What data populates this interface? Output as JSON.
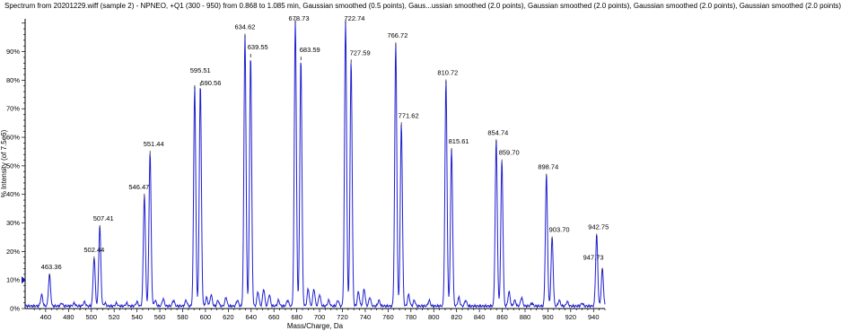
{
  "chart_data": {
    "type": "line",
    "title": "Spectrum from 20201229.wiff (sample 2) - NPNEO, +Q1 (300 - 950) from 0.868 to 1.085 min, Gaussian smoothed (0.5 points), Gaus...ussian smoothed (2.0 points), Gaussian smoothed (2.0 points), Gaussian smoothed (2.0 points), Gaussian smoothed (2.0 points)",
    "xlabel": "Mass/Charge, Da",
    "ylabel": "% Intensity (of 7.5e6)",
    "xlim": [
      442,
      950
    ],
    "ylim": [
      0,
      100
    ],
    "x_ticks": [
      460,
      480,
      500,
      520,
      540,
      560,
      580,
      600,
      620,
      640,
      660,
      680,
      700,
      720,
      740,
      760,
      780,
      800,
      820,
      840,
      860,
      880,
      900,
      920,
      940
    ],
    "y_ticks": [
      0,
      10,
      20,
      30,
      40,
      50,
      60,
      70,
      80,
      90
    ],
    "y_tick_suffix": "%",
    "grid": false,
    "line_color": "#2020d0",
    "peaks": [
      {
        "label": "463.36",
        "x": 463.36,
        "y": 11
      },
      {
        "label": "502.44",
        "x": 502.44,
        "y": 17
      },
      {
        "label": "507.41",
        "x": 507.41,
        "y": 28
      },
      {
        "label": "546.47",
        "x": 546.47,
        "y": 39
      },
      {
        "label": "551.44",
        "x": 551.44,
        "y": 54
      },
      {
        "label": "595.51",
        "x": 595.51,
        "y": 78
      },
      {
        "label": "590.56",
        "x": 590.56,
        "y": 77
      },
      {
        "label": "634.62",
        "x": 634.62,
        "y": 95
      },
      {
        "label": "639.55",
        "x": 639.55,
        "y": 88
      },
      {
        "label": "678.73",
        "x": 678.73,
        "y": 100
      },
      {
        "label": "683.59",
        "x": 683.59,
        "y": 87
      },
      {
        "label": "722.74",
        "x": 722.74,
        "y": 100
      },
      {
        "label": "727.59",
        "x": 727.59,
        "y": 86
      },
      {
        "label": "766.72",
        "x": 766.72,
        "y": 92
      },
      {
        "label": "771.62",
        "x": 771.62,
        "y": 64
      },
      {
        "label": "810.72",
        "x": 810.72,
        "y": 79
      },
      {
        "label": "815.61",
        "x": 815.61,
        "y": 55
      },
      {
        "label": "854.74",
        "x": 854.74,
        "y": 58
      },
      {
        "label": "859.70",
        "x": 859.7,
        "y": 51
      },
      {
        "label": "898.74",
        "x": 898.74,
        "y": 46
      },
      {
        "label": "903.70",
        "x": 903.7,
        "y": 24
      },
      {
        "label": "942.75",
        "x": 942.75,
        "y": 25
      },
      {
        "label": "947.73",
        "x": 947.73,
        "y": 13
      }
    ],
    "minor_peaks": [
      {
        "x": 456.5,
        "y": 4
      },
      {
        "x": 474,
        "y": 1
      },
      {
        "x": 485,
        "y": 1
      },
      {
        "x": 494,
        "y": 1.5
      },
      {
        "x": 512,
        "y": 1
      },
      {
        "x": 522,
        "y": 1
      },
      {
        "x": 531,
        "y": 1
      },
      {
        "x": 540,
        "y": 1.5
      },
      {
        "x": 556,
        "y": 2
      },
      {
        "x": 563,
        "y": 2.5
      },
      {
        "x": 572,
        "y": 2
      },
      {
        "x": 583,
        "y": 2
      },
      {
        "x": 601,
        "y": 3
      },
      {
        "x": 605,
        "y": 4
      },
      {
        "x": 611,
        "y": 2
      },
      {
        "x": 618,
        "y": 3
      },
      {
        "x": 628,
        "y": 2
      },
      {
        "x": 646,
        "y": 5
      },
      {
        "x": 651,
        "y": 6
      },
      {
        "x": 656,
        "y": 4
      },
      {
        "x": 664,
        "y": 2
      },
      {
        "x": 672,
        "y": 2
      },
      {
        "x": 690,
        "y": 6
      },
      {
        "x": 695,
        "y": 6
      },
      {
        "x": 700,
        "y": 4
      },
      {
        "x": 708,
        "y": 2
      },
      {
        "x": 716,
        "y": 2
      },
      {
        "x": 734,
        "y": 5
      },
      {
        "x": 739,
        "y": 6
      },
      {
        "x": 744,
        "y": 3
      },
      {
        "x": 752,
        "y": 2
      },
      {
        "x": 778,
        "y": 4
      },
      {
        "x": 783,
        "y": 2
      },
      {
        "x": 796,
        "y": 2
      },
      {
        "x": 822,
        "y": 3
      },
      {
        "x": 828,
        "y": 2
      },
      {
        "x": 866,
        "y": 5
      },
      {
        "x": 871,
        "y": 2
      },
      {
        "x": 877,
        "y": 3
      },
      {
        "x": 886,
        "y": 1
      },
      {
        "x": 910,
        "y": 2
      },
      {
        "x": 917,
        "y": 1.5
      },
      {
        "x": 930,
        "y": 1
      }
    ]
  }
}
